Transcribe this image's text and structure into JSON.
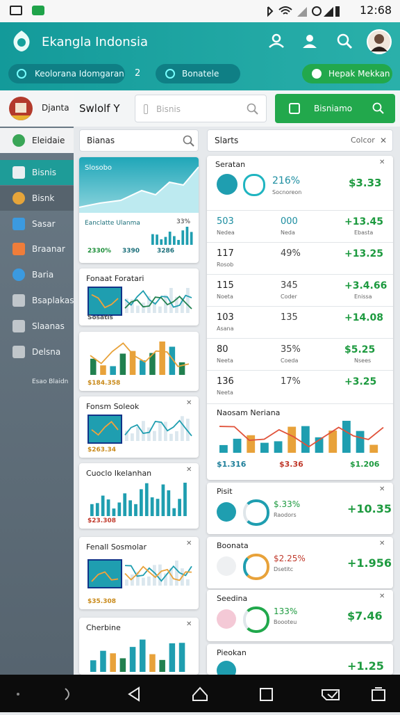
{
  "status_bar": {
    "time": "12:68"
  },
  "header": {
    "title": "Ekangla Indonsia"
  },
  "toolbar": {
    "tab_1": "Keolorana Idomgaran",
    "tab_count": "2",
    "tab_2": "Bonatele",
    "action": "Hepak Mekkan"
  },
  "sidebar": {
    "user": "Djanta",
    "items": [
      "Eleidaie",
      "Bisnis",
      "Bisnk",
      "Sasar",
      "Braanar",
      "Baria",
      "Bsaplakas",
      "Slaanas",
      "Delsna"
    ],
    "footer": "Esao Blaidn"
  },
  "top_bar": {
    "title": "Swlolf Y",
    "search": "Bisnis",
    "search_button": "Bisniamo"
  },
  "left_panel": {
    "search": "Bianas",
    "cards": [
      {
        "title": "Slosobo",
        "subtitle": "Eanclatte Ulanma",
        "badge": "33%",
        "stats": [
          "2330%",
          "3390",
          "3286"
        ]
      },
      {
        "title": "Fonaat Foratari",
        "caption": "Sosatis"
      },
      {
        "caption": "$184.358"
      },
      {
        "title": "Fonsm Soleok",
        "caption": "$263.34"
      },
      {
        "title": "Cuoclo Ikelanhan",
        "caption": "$23.308"
      },
      {
        "title": "Fenall Sosmolar",
        "caption": "$35.308"
      },
      {
        "title": "Cherbine"
      }
    ]
  },
  "right_panel": {
    "search": "Slarts",
    "filter": "Colcor",
    "list_title": "Seratan",
    "first_row": {
      "percent": "216%",
      "label": "Socnoreon",
      "value": "$3.33"
    },
    "rows": [
      {
        "c1": "503",
        "c1_sub": "Nedea",
        "c2": "000",
        "c2_sub": "Neda",
        "c3": "+13.45",
        "c3_sub": "Ebasta"
      },
      {
        "c1": "117",
        "c1_sub": "Rosob",
        "c2": "49%",
        "c3": "+13.25"
      },
      {
        "c1": "115",
        "c1_sub": "Noeta",
        "c2": "345",
        "c2_sub": "Coder",
        "c3": "+3.4.66",
        "c3_sub": "Enissa"
      },
      {
        "c1": "103",
        "c1_sub": "Asana",
        "c2": "135",
        "c3": "+14.08"
      },
      {
        "c1": "80",
        "c1_sub": "Neeta",
        "c2": "35%",
        "c2_sub": "Coeda",
        "c3": "$5.25",
        "c3_sub": "Nsees"
      },
      {
        "c1": "136",
        "c1_sub": "Neeta",
        "c2": "17%",
        "c3": "+3.25"
      }
    ],
    "chart": {
      "title": "Naosam Neriana",
      "labels": [
        "$1.316",
        "$3.36",
        "$1.206"
      ]
    },
    "cards": [
      {
        "title": "Pisit",
        "percent": "$.33%",
        "label": "Raodors",
        "value": "+10.35"
      },
      {
        "title": "Boonata",
        "percent": "$2.25%",
        "label": "Dsetitc",
        "value": "+1.956"
      },
      {
        "title": "Seedina",
        "percent": "133%",
        "label": "Boooteu",
        "value": "$7.46"
      },
      {
        "title": "Pieokan",
        "value": "+1.25"
      }
    ]
  }
}
